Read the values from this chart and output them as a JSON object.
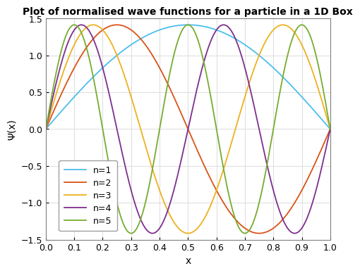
{
  "title": "Plot of normalised wave functions for a particle in a 1D Box",
  "xlabel": "x",
  "ylabel": "Ψ(x)",
  "xlim": [
    0,
    1
  ],
  "ylim": [
    -1.5,
    1.5
  ],
  "xticks": [
    0,
    0.1,
    0.2,
    0.3,
    0.4,
    0.5,
    0.6,
    0.7,
    0.8,
    0.9,
    1
  ],
  "yticks": [
    -1.5,
    -1.0,
    -0.5,
    0,
    0.5,
    1.0,
    1.5
  ],
  "n_values": [
    1,
    2,
    3,
    4,
    5
  ],
  "colors": [
    "#4DBEEE",
    "#D95319",
    "#EDB120",
    "#7E2F8E",
    "#77AC30"
  ],
  "legend_labels": [
    "n=1",
    "n=2",
    "n=3",
    "n=4",
    "n=5"
  ],
  "linewidth": 1.3,
  "L": 1.0,
  "num_points": 1000,
  "background_color": "#ffffff",
  "grid_color": "#e0e0e0",
  "title_fontsize": 10,
  "label_fontsize": 10,
  "tick_fontsize": 9,
  "legend_fontsize": 9
}
